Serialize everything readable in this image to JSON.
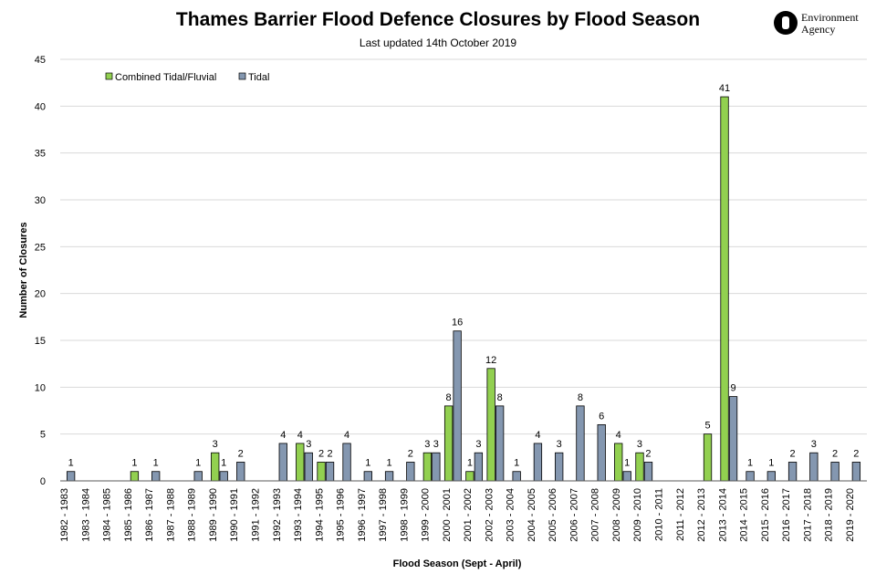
{
  "header": {
    "title": "Thames Barrier Flood Defence Closures by Flood Season",
    "subtitle": "Last updated  14th October 2019"
  },
  "logo": {
    "line1": "Environment",
    "line2": "Agency",
    "icon": "environment-agency-logo-icon"
  },
  "chart_data": {
    "type": "bar",
    "title": "Thames Barrier Flood Defence Closures by Flood Season",
    "subtitle": "Last updated  14th October 2019",
    "xlabel": "Flood Season (Sept - April)",
    "ylabel": "Number of Closures",
    "ylim": [
      0,
      45
    ],
    "yticks": [
      0,
      5,
      10,
      15,
      20,
      25,
      30,
      35,
      40,
      45
    ],
    "grid": true,
    "legend_position": "top-left",
    "categories": [
      "1982 - 1983",
      "1983 - 1984",
      "1984 - 1985",
      "1985 - 1986",
      "1986 - 1987",
      "1987 - 1988",
      "1988 - 1989",
      "1989 - 1990",
      "1990 - 1991",
      "1991 - 1992",
      "1992 - 1993",
      "1993 - 1994",
      "1994 - 1995",
      "1995 - 1996",
      "1996 - 1997",
      "1997 - 1998",
      "1998 - 1999",
      "1999 - 2000",
      "2000 - 2001",
      "2001 - 2002",
      "2002 - 2003",
      "2003 - 2004",
      "2004 - 2005",
      "2005 - 2006",
      "2006 - 2007",
      "2007 - 2008",
      "2008 - 2009",
      "2009 - 2010",
      "2010 - 2011",
      "2011 - 2012",
      "2012 - 2013",
      "2013 - 2014",
      "2014 - 2015",
      "2015 - 2016",
      "2016 - 2017",
      "2017 - 2018",
      "2018 - 2019",
      "2019 - 2020"
    ],
    "series": [
      {
        "name": "Combined Tidal/Fluvial",
        "color": "#92d050",
        "values": [
          0,
          0,
          0,
          1,
          0,
          0,
          0,
          3,
          0,
          0,
          0,
          4,
          2,
          0,
          0,
          0,
          0,
          3,
          8,
          1,
          12,
          0,
          0,
          0,
          0,
          0,
          4,
          3,
          0,
          0,
          5,
          41,
          0,
          0,
          0,
          0,
          0,
          0
        ]
      },
      {
        "name": "Tidal",
        "color": "#8497b0",
        "values": [
          1,
          0,
          0,
          0,
          1,
          0,
          1,
          1,
          2,
          0,
          4,
          3,
          2,
          4,
          1,
          1,
          2,
          3,
          16,
          3,
          8,
          1,
          4,
          3,
          8,
          6,
          1,
          2,
          0,
          0,
          0,
          9,
          1,
          1,
          2,
          3,
          2,
          2
        ]
      }
    ]
  }
}
